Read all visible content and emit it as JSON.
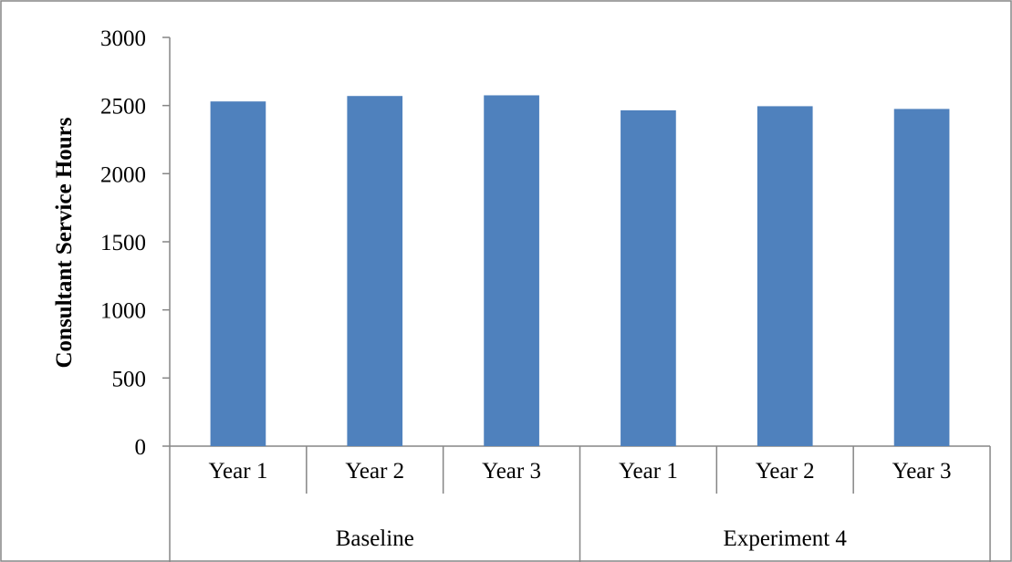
{
  "chart_data": {
    "type": "bar",
    "title": "",
    "xlabel": "",
    "ylabel": "Consultant Service Hours",
    "ylim": [
      0,
      3000
    ],
    "yticks": [
      0,
      500,
      1000,
      1500,
      2000,
      2500,
      3000
    ],
    "grid": false,
    "legend": "none",
    "groups": [
      {
        "label": "Baseline",
        "categories": [
          "Year 1",
          "Year 2",
          "Year 3"
        ]
      },
      {
        "label": "Experiment 4",
        "categories": [
          "Year 1",
          "Year 2",
          "Year 3"
        ]
      }
    ],
    "categories": [
      "Year 1",
      "Year 2",
      "Year 3",
      "Year 1",
      "Year 2",
      "Year 3"
    ],
    "values": [
      2530,
      2570,
      2575,
      2465,
      2495,
      2475
    ],
    "colors": {
      "bar": "#4F81BD",
      "axis": "#868686",
      "border": "#868686"
    }
  }
}
